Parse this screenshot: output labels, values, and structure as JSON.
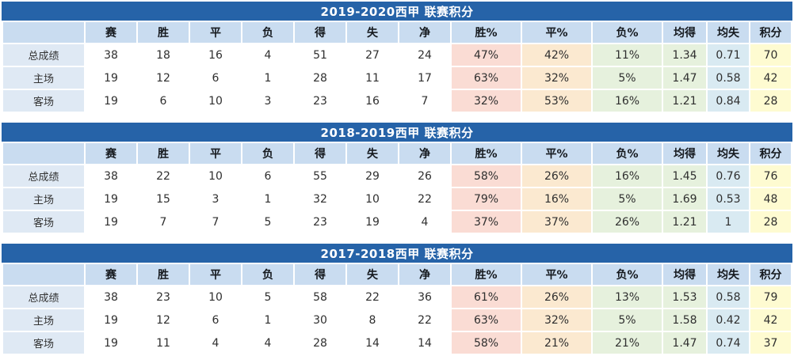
{
  "page": {
    "columns": [
      "",
      "赛",
      "胜",
      "平",
      "负",
      "得",
      "失",
      "净",
      "胜%",
      "平%",
      "负%",
      "均得",
      "均失",
      "积分"
    ],
    "tables": [
      {
        "title": "2019-2020西甲 联赛积分",
        "rows": [
          {
            "label": "总成绩",
            "values": [
              "38",
              "18",
              "16",
              "4",
              "51",
              "27",
              "24",
              "47%",
              "42%",
              "11%",
              "1.34",
              "0.71",
              "70"
            ]
          },
          {
            "label": "主场",
            "values": [
              "19",
              "12",
              "6",
              "1",
              "28",
              "11",
              "17",
              "63%",
              "32%",
              "5%",
              "1.47",
              "0.58",
              "42"
            ]
          },
          {
            "label": "客场",
            "values": [
              "19",
              "6",
              "10",
              "3",
              "23",
              "16",
              "7",
              "32%",
              "53%",
              "16%",
              "1.21",
              "0.84",
              "28"
            ]
          }
        ]
      },
      {
        "title": "2018-2019西甲 联赛积分",
        "rows": [
          {
            "label": "总成绩",
            "values": [
              "38",
              "22",
              "10",
              "6",
              "55",
              "29",
              "26",
              "58%",
              "26%",
              "16%",
              "1.45",
              "0.76",
              "76"
            ]
          },
          {
            "label": "主场",
            "values": [
              "19",
              "15",
              "3",
              "1",
              "32",
              "10",
              "22",
              "79%",
              "16%",
              "5%",
              "1.69",
              "0.53",
              "48"
            ]
          },
          {
            "label": "客场",
            "values": [
              "19",
              "7",
              "7",
              "5",
              "23",
              "19",
              "4",
              "37%",
              "37%",
              "26%",
              "1.21",
              "1",
              "28"
            ]
          }
        ]
      },
      {
        "title": "2017-2018西甲 联赛积分",
        "rows": [
          {
            "label": "总成绩",
            "values": [
              "38",
              "23",
              "10",
              "5",
              "58",
              "22",
              "36",
              "61%",
              "26%",
              "13%",
              "1.53",
              "0.58",
              "79"
            ]
          },
          {
            "label": "主场",
            "values": [
              "19",
              "12",
              "6",
              "1",
              "30",
              "8",
              "22",
              "63%",
              "32%",
              "5%",
              "1.58",
              "0.42",
              "42"
            ]
          },
          {
            "label": "客场",
            "values": [
              "19",
              "11",
              "4",
              "4",
              "28",
              "14",
              "14",
              "58%",
              "21%",
              "21%",
              "1.47",
              "0.74",
              "37"
            ]
          }
        ]
      }
    ],
    "colors": {
      "title_bar": "#2663A8",
      "title_text": "#FFFFFF",
      "header_row": "#C9DCF0",
      "label_cell": "#DFE9F4",
      "win_pct": "#FADCD4",
      "draw_pct": "#FBE9D0",
      "loss_pct": "#E6F1DD",
      "avg_for": "#E6F1DD",
      "avg_against": "#D9EAF2",
      "points": "#FEFBD1"
    }
  }
}
